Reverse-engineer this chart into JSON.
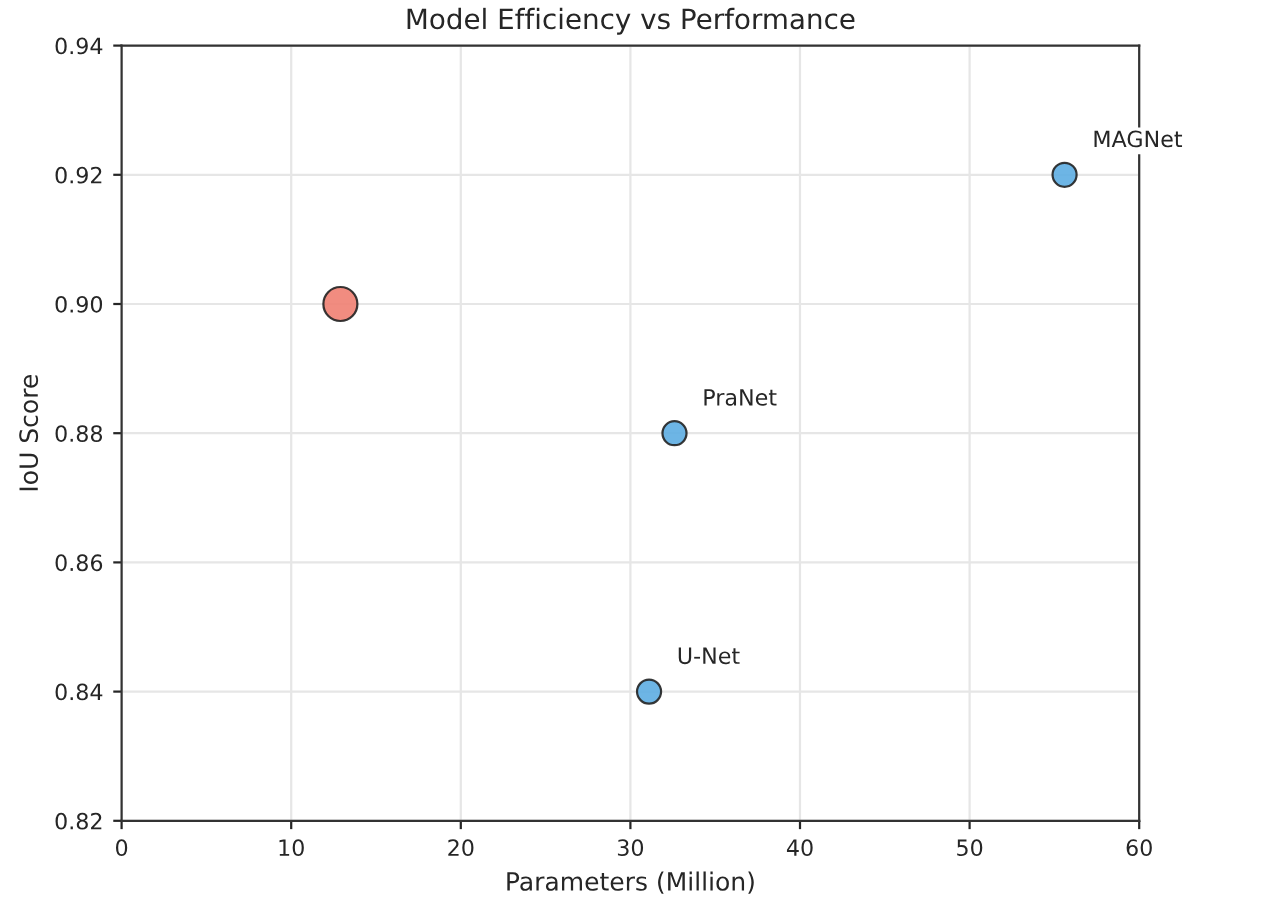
{
  "chart_data": {
    "type": "bubble",
    "title": "Model Efficiency vs Performance",
    "xlabel": "Parameters (Million)",
    "ylabel": "IoU Score",
    "x": [
      12.9,
      32.6,
      31.1,
      55.6
    ],
    "values": [
      0.9,
      0.88,
      0.84,
      0.92
    ],
    "sizes": [
      1,
      0.5,
      0.5,
      0.5
    ],
    "colors": [
      "#f08072",
      "#5dade2",
      "#5dade2",
      "#5dade2"
    ],
    "annotations": [
      {
        "text": "PraNet",
        "x": 32.6,
        "y": 0.88
      },
      {
        "text": "U-Net",
        "x": 31.1,
        "y": 0.84
      },
      {
        "text": "MAGNet",
        "x": 55.6,
        "y": 0.92
      }
    ],
    "xlim": [
      0,
      60
    ],
    "xticks": [
      0,
      10,
      20,
      30,
      40,
      50,
      60
    ],
    "ylim": [
      0.82,
      0.94
    ],
    "yticks": [
      {
        "value": 0.82,
        "label": "0.82"
      },
      {
        "value": 0.84,
        "label": "0.84"
      },
      {
        "value": 0.86,
        "label": "0.86"
      },
      {
        "value": 0.88,
        "label": "0.88"
      },
      {
        "value": 0.9,
        "label": "0.90"
      },
      {
        "value": 0.92,
        "label": "0.92"
      },
      {
        "value": 0.94,
        "label": "0.94"
      }
    ],
    "grid": true
  }
}
